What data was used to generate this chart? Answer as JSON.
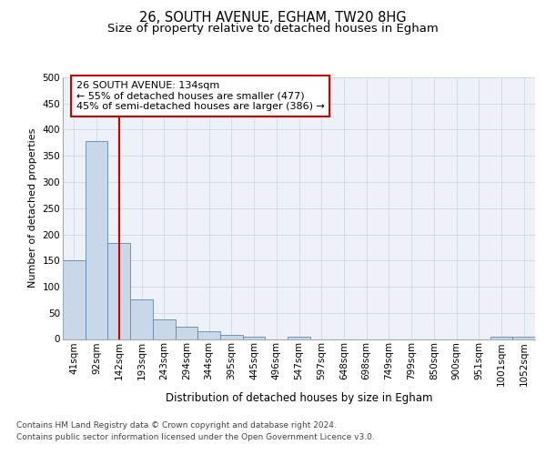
{
  "title_line1": "26, SOUTH AVENUE, EGHAM, TW20 8HG",
  "title_line2": "Size of property relative to detached houses in Egham",
  "xlabel": "Distribution of detached houses by size in Egham",
  "ylabel": "Number of detached properties",
  "categories": [
    "41sqm",
    "92sqm",
    "142sqm",
    "193sqm",
    "243sqm",
    "294sqm",
    "344sqm",
    "395sqm",
    "445sqm",
    "496sqm",
    "547sqm",
    "597sqm",
    "648sqm",
    "698sqm",
    "749sqm",
    "799sqm",
    "850sqm",
    "900sqm",
    "951sqm",
    "1001sqm",
    "1052sqm"
  ],
  "values": [
    150,
    378,
    183,
    75,
    37,
    23,
    14,
    7,
    5,
    0,
    5,
    0,
    0,
    0,
    0,
    0,
    0,
    0,
    0,
    5,
    5
  ],
  "bar_color": "#c8d8e8",
  "bar_edge_color": "#5a8ab0",
  "vline_x_index": 2,
  "vline_color": "#cc0000",
  "annotation_line1": "26 SOUTH AVENUE: 134sqm",
  "annotation_line2": "← 55% of detached houses are smaller (477)",
  "annotation_line3": "45% of semi-detached houses are larger (386) →",
  "annotation_box_color": "#cc0000",
  "ylim": [
    0,
    500
  ],
  "yticks": [
    0,
    50,
    100,
    150,
    200,
    250,
    300,
    350,
    400,
    450,
    500
  ],
  "grid_color": "#d0d8e8",
  "bg_color": "#eef2f8",
  "footer_line1": "Contains HM Land Registry data © Crown copyright and database right 2024.",
  "footer_line2": "Contains public sector information licensed under the Open Government Licence v3.0.",
  "title_fontsize": 10.5,
  "subtitle_fontsize": 9.5,
  "xlabel_fontsize": 8.5,
  "ylabel_fontsize": 8,
  "tick_fontsize": 7.5,
  "annotation_fontsize": 8,
  "footer_fontsize": 6.5
}
